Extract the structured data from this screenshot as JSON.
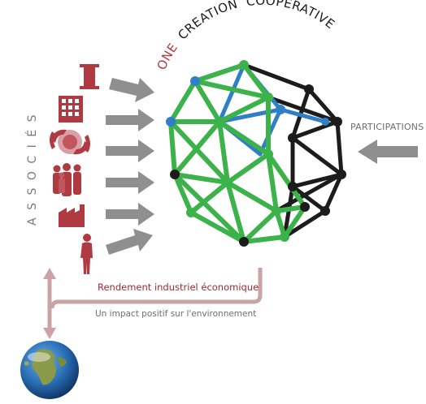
{
  "title": {
    "one": "ONE",
    "creation": "CREATION",
    "cooperative": "COOPÉRATIVE"
  },
  "left_label": "ASSOCIÉS",
  "right_label": "PARTICIPATIONS",
  "yield_label": "Rendement industriel économique",
  "impact_label": "Un impact positif sur l'environnement",
  "icons": [
    "column-icon",
    "building-icon",
    "handshake-globe-icon",
    "group-people-icon",
    "factory-icon",
    "person-icon"
  ],
  "colors": {
    "accent_red": "#b03a41",
    "dark_red": "#9a2b33",
    "arrow_gray": "#8f8f8f",
    "green": "#3cb34a",
    "blue": "#2f7fc8",
    "black": "#1c1c1c"
  }
}
